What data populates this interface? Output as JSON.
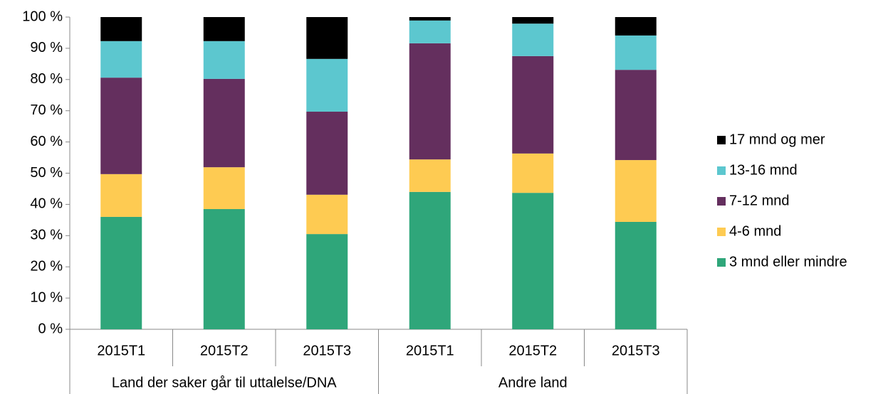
{
  "chart_data": {
    "type": "stacked_bar",
    "categories": [
      "2015T1",
      "2015T2",
      "2015T3",
      "2015T1",
      "2015T2",
      "2015T3"
    ],
    "groups": [
      "Land der saker går til uttalelse/DNA",
      "Andre land"
    ],
    "series": [
      {
        "name": "3 mnd eller mindre",
        "color": "#2fa67a",
        "values": [
          36.0,
          38.5,
          30.5,
          44.0,
          43.7,
          34.4
        ]
      },
      {
        "name": "4-6 mnd",
        "color": "#fecb52",
        "values": [
          13.7,
          13.4,
          12.6,
          10.4,
          12.6,
          19.8
        ]
      },
      {
        "name": "7-12 mnd",
        "color": "#642f5e",
        "values": [
          30.9,
          28.3,
          26.6,
          37.2,
          31.2,
          28.9
        ]
      },
      {
        "name": "13-16 mnd",
        "color": "#5cc7cf",
        "values": [
          11.7,
          12.1,
          16.9,
          7.3,
          10.4,
          11.0
        ]
      },
      {
        "name": "17 mnd og mer",
        "color": "#000000",
        "values": [
          7.7,
          7.7,
          13.4,
          1.1,
          2.1,
          5.9
        ]
      }
    ],
    "ylim": [
      0,
      100
    ],
    "yticks": [
      {
        "value": 0,
        "label": "0 %"
      },
      {
        "value": 10,
        "label": "10 %"
      },
      {
        "value": 20,
        "label": "20 %"
      },
      {
        "value": 30,
        "label": "30 %"
      },
      {
        "value": 40,
        "label": "40 %"
      },
      {
        "value": 50,
        "label": "50 %"
      },
      {
        "value": 60,
        "label": "60 %"
      },
      {
        "value": 70,
        "label": "70 %"
      },
      {
        "value": 80,
        "label": "80 %"
      },
      {
        "value": 90,
        "label": "90 %"
      },
      {
        "value": 100,
        "label": "100 %"
      }
    ],
    "legend": "right"
  }
}
